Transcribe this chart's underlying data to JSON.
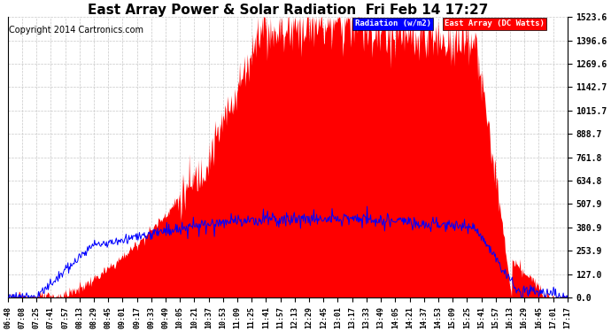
{
  "title": "East Array Power & Solar Radiation  Fri Feb 14 17:27",
  "copyright": "Copyright 2014 Cartronics.com",
  "legend_radiation": "Radiation (w/m2)",
  "legend_east_array": "East Array (DC Watts)",
  "ymax": 1523.6,
  "ymin": 0.0,
  "yticks": [
    0.0,
    127.0,
    253.9,
    380.9,
    507.9,
    634.8,
    761.8,
    888.7,
    1015.7,
    1142.7,
    1269.6,
    1396.6,
    1523.6
  ],
  "ytick_labels": [
    "0.0",
    "127.0",
    "253.9",
    "380.9",
    "507.9",
    "634.8",
    "761.8",
    "888.7",
    "1015.7",
    "1142.7",
    "1269.6",
    "1396.6",
    "1523.6"
  ],
  "background_color": "#ffffff",
  "grid_color": "#c8c8c8",
  "radiation_color": "#0000ff",
  "east_array_color": "#ff0000",
  "title_fontsize": 11,
  "copyright_fontsize": 7,
  "xtick_labels": [
    "06:48",
    "07:08",
    "07:25",
    "07:41",
    "07:57",
    "08:13",
    "08:29",
    "08:45",
    "09:01",
    "09:17",
    "09:33",
    "09:49",
    "10:05",
    "10:21",
    "10:37",
    "10:53",
    "11:09",
    "11:25",
    "11:41",
    "11:57",
    "12:13",
    "12:29",
    "12:45",
    "13:01",
    "13:17",
    "13:33",
    "13:49",
    "14:05",
    "14:21",
    "14:37",
    "14:53",
    "15:09",
    "15:25",
    "15:41",
    "15:57",
    "16:13",
    "16:29",
    "16:45",
    "17:01",
    "17:17"
  ]
}
